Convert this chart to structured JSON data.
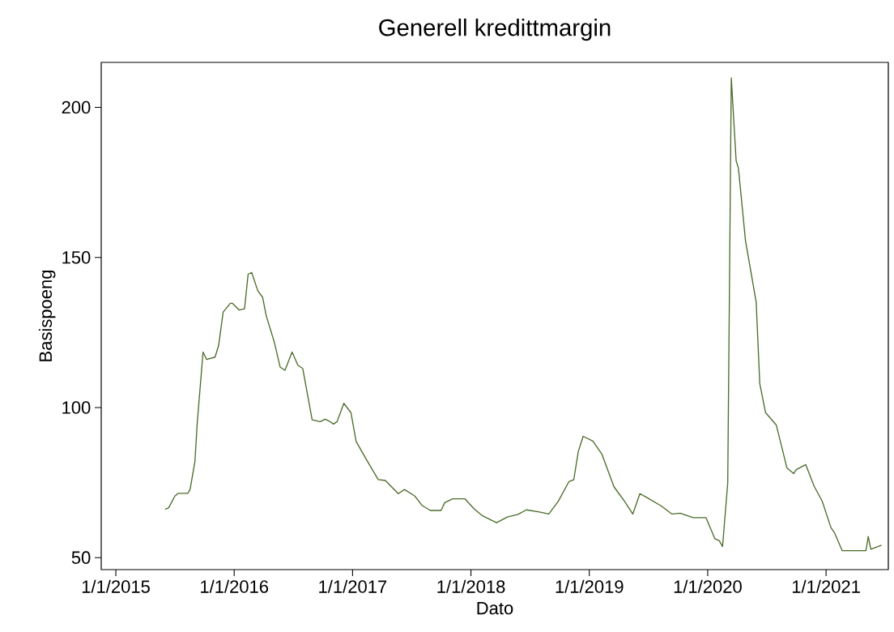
{
  "chart_data": {
    "type": "line",
    "title": "Generell kredittmargin",
    "xlabel": "Dato",
    "ylabel": "Basispoeng",
    "xlim": [
      "2014-11-17",
      "2021-07-12"
    ],
    "ylim": [
      46,
      215
    ],
    "xticks": [
      {
        "value": "2015-01-01",
        "label": "1/1/2015"
      },
      {
        "value": "2016-01-01",
        "label": "1/1/2016"
      },
      {
        "value": "2017-01-01",
        "label": "1/1/2017"
      },
      {
        "value": "2018-01-01",
        "label": "1/1/2018"
      },
      {
        "value": "2019-01-01",
        "label": "1/1/2019"
      },
      {
        "value": "2020-01-01",
        "label": "1/1/2020"
      },
      {
        "value": "2021-01-01",
        "label": "1/1/2021"
      }
    ],
    "yticks": [
      50,
      100,
      150,
      200
    ],
    "marker": "none",
    "line_style": "solid",
    "series": [
      {
        "color": "#4b6b2a",
        "x": [
          "2015-06-02",
          "2015-06-13",
          "2015-07-02",
          "2015-07-12",
          "2015-08-11",
          "2015-08-18",
          "2015-09-02",
          "2015-09-09",
          "2015-09-27",
          "2015-10-08",
          "2015-11-03",
          "2015-11-14",
          "2015-11-28",
          "2015-12-20",
          "2015-12-27",
          "2016-01-16",
          "2016-02-02",
          "2016-02-13",
          "2016-02-24",
          "2016-03-14",
          "2016-03-29",
          "2016-04-09",
          "2016-05-04",
          "2016-05-22",
          "2016-06-06",
          "2016-06-28",
          "2016-07-16",
          "2016-07-31",
          "2016-08-29",
          "2016-09-23",
          "2016-10-08",
          "2016-10-19",
          "2016-11-03",
          "2016-11-14",
          "2016-12-05",
          "2016-12-27",
          "2017-01-12",
          "2017-02-13",
          "2017-03-21",
          "2017-04-12",
          "2017-05-22",
          "2017-06-10",
          "2017-07-12",
          "2017-08-03",
          "2017-08-29",
          "2017-10-01",
          "2017-10-12",
          "2017-11-06",
          "2017-12-13",
          "2018-01-12",
          "2018-02-06",
          "2018-03-21",
          "2018-04-23",
          "2018-05-26",
          "2018-06-21",
          "2018-07-31",
          "2018-08-29",
          "2018-09-27",
          "2018-10-30",
          "2018-11-14",
          "2018-11-28",
          "2018-12-13",
          "2019-01-12",
          "2019-02-09",
          "2019-03-18",
          "2019-04-20",
          "2019-05-15",
          "2019-06-06",
          "2019-06-28",
          "2019-08-11",
          "2019-09-13",
          "2019-10-08",
          "2019-11-17",
          "2019-12-27",
          "2020-01-23",
          "2020-02-06",
          "2020-02-16",
          "2020-03-03",
          "2020-03-14",
          "2020-03-29",
          "2020-04-05",
          "2020-04-27",
          "2020-05-30",
          "2020-06-10",
          "2020-06-28",
          "2020-07-31",
          "2020-09-02",
          "2020-09-23",
          "2020-10-01",
          "2020-10-30",
          "2020-11-25",
          "2020-12-20",
          "2021-01-16",
          "2021-01-27",
          "2021-02-20",
          "2021-05-04",
          "2021-05-11",
          "2021-05-19",
          "2021-06-21"
        ],
        "values": [
          66.1,
          66.6,
          70.5,
          71.4,
          71.4,
          72.7,
          82.1,
          94.8,
          118.5,
          116,
          116.8,
          120.7,
          131.8,
          134.7,
          134.7,
          132.5,
          132.9,
          144.4,
          145,
          138.9,
          136.7,
          130.6,
          121.8,
          113.5,
          112.4,
          118.5,
          114.1,
          113,
          95.9,
          95.3,
          96.1,
          95.6,
          94.5,
          95.3,
          101.4,
          98.3,
          88.7,
          82.6,
          76,
          75.7,
          71.3,
          72.7,
          70.5,
          67.4,
          65.7,
          65.7,
          68.3,
          69.6,
          69.6,
          66.1,
          63.9,
          61.6,
          63.5,
          64.4,
          65.9,
          65.2,
          64.5,
          68.7,
          75.3,
          75.9,
          85.3,
          90.4,
          88.8,
          84.4,
          73.6,
          68.7,
          64.5,
          71.3,
          70,
          67.2,
          64.5,
          64.8,
          63.3,
          63.3,
          56.3,
          55.6,
          53.7,
          74.9,
          209.8,
          182.2,
          179.8,
          155.5,
          135.1,
          108,
          98.3,
          94.2,
          79.9,
          78,
          79.3,
          81,
          73.8,
          68.8,
          60,
          58.3,
          52.3,
          52.3,
          57,
          52.8,
          54.1
        ]
      }
    ]
  }
}
